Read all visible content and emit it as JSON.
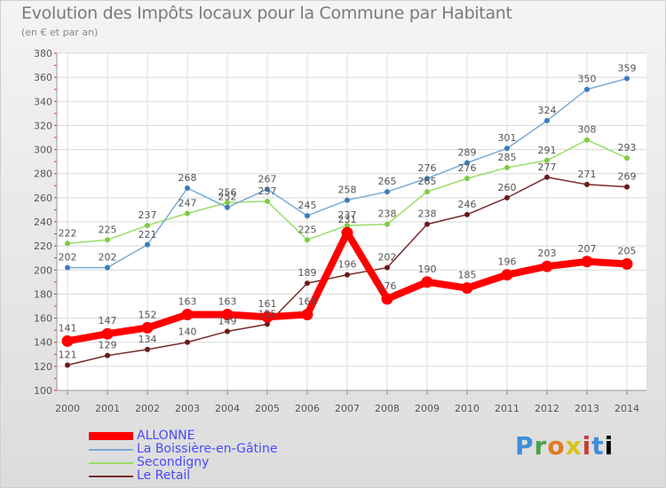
{
  "header": {
    "title": "Evolution des Impôts locaux pour la Commune par Habitant",
    "subtitle": "(en € et par an)"
  },
  "logo_text": "Proxiti",
  "chart_data": {
    "type": "line",
    "x": [
      "2000",
      "2001",
      "2002",
      "2003",
      "2004",
      "2005",
      "2006",
      "2007",
      "2008",
      "2009",
      "2010",
      "2011",
      "2012",
      "2013",
      "2014"
    ],
    "ylim": [
      100,
      380
    ],
    "yticks": [
      100,
      120,
      140,
      160,
      180,
      200,
      220,
      240,
      260,
      280,
      300,
      320,
      340,
      360,
      380
    ],
    "grid": true,
    "legend_position": "bottom-left",
    "series": [
      {
        "name": "ALLONNE",
        "color": "#ff0000",
        "values": [
          141,
          147,
          152,
          163,
          163,
          161,
          163,
          231,
          176,
          190,
          185,
          196,
          203,
          207,
          205
        ]
      },
      {
        "name": "La Boissière-en-Gâtine",
        "color": "#7aaad6",
        "values": [
          202,
          202,
          221,
          268,
          252,
          267,
          245,
          258,
          265,
          276,
          289,
          301,
          324,
          350,
          359
        ]
      },
      {
        "name": "Secondigny",
        "color": "#99dd66",
        "values": [
          222,
          225,
          237,
          247,
          256,
          257,
          225,
          237,
          238,
          265,
          276,
          285,
          291,
          308,
          293
        ]
      },
      {
        "name": "Le Retail",
        "color": "#7a2a2a",
        "values": [
          121,
          129,
          134,
          140,
          149,
          155,
          189,
          196,
          202,
          238,
          246,
          260,
          277,
          271,
          269
        ]
      }
    ]
  }
}
